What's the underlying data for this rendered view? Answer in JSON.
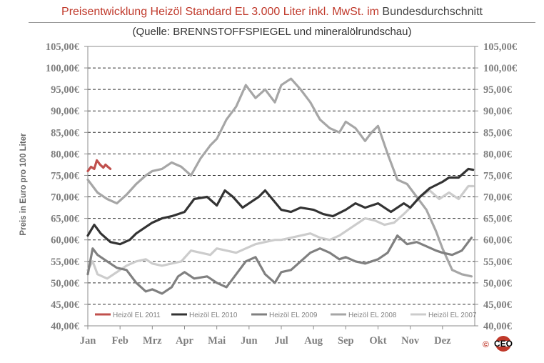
{
  "title": {
    "part1": "Preisentwicklung  Heizöl  Standard  EL  3.000  Liter  inkl.  MwSt.  im",
    "part2": "Bundesdurchschnitt"
  },
  "subtitle": "(Quelle:  BRENNSTOFFSPIEGEL  und  mineralölrundschau)",
  "logo": {
    "copyright": "©",
    "text": "CEO"
  },
  "chart_data": {
    "type": "line",
    "ylabel": "Preis in Euro pro 100 Liter",
    "ylim": [
      40,
      105
    ],
    "yticks": [
      "40,00€",
      "45,00€",
      "50,00€",
      "55,00€",
      "60,00€",
      "65,00€",
      "70,00€",
      "75,00€",
      "80,00€",
      "85,00€",
      "90,00€",
      "95,00€",
      "100,00€",
      "105,00€"
    ],
    "xlim": [
      1,
      13
    ],
    "categories": [
      "Jan",
      "Feb",
      "Mrz",
      "Apr",
      "Mai",
      "Jun",
      "Jul",
      "Aug",
      "Sep",
      "Okt",
      "Nov",
      "Dez"
    ],
    "grid": "horizontal dashed",
    "legend_position": "bottom",
    "series": [
      {
        "name": "Heizöl EL 2011",
        "color": "#c0504d",
        "x": [
          1.0,
          1.1,
          1.2,
          1.28,
          1.38,
          1.48,
          1.55,
          1.62,
          1.7
        ],
        "values": [
          76.0,
          77.0,
          76.5,
          78.5,
          77.5,
          76.8,
          77.5,
          77.0,
          76.5
        ]
      },
      {
        "name": "Heizöl EL 2010",
        "color": "#333333",
        "x": [
          1.0,
          1.2,
          1.4,
          1.7,
          2.0,
          2.3,
          2.5,
          2.8,
          3.0,
          3.3,
          3.6,
          4.0,
          4.3,
          4.7,
          5.0,
          5.25,
          5.5,
          5.8,
          6.0,
          6.3,
          6.5,
          7.0,
          7.3,
          7.6,
          8.0,
          8.3,
          8.6,
          9.0,
          9.3,
          9.6,
          10.0,
          10.4,
          10.8,
          11.0,
          11.3,
          11.6,
          12.0,
          12.2,
          12.5,
          12.8,
          12.95
        ],
        "values": [
          61.0,
          63.5,
          61.5,
          59.5,
          59.0,
          60.0,
          61.5,
          63.0,
          64.0,
          65.0,
          65.5,
          66.5,
          69.5,
          70.0,
          68.0,
          71.5,
          70.0,
          67.5,
          68.5,
          70.0,
          71.5,
          67.0,
          66.5,
          67.5,
          67.0,
          66.0,
          65.5,
          67.0,
          68.5,
          67.5,
          68.5,
          66.5,
          68.5,
          67.5,
          70.0,
          72.0,
          73.5,
          74.5,
          74.5,
          76.5,
          76.3
        ]
      },
      {
        "name": "Heizöl EL 2009",
        "color": "#808080",
        "x": [
          1.0,
          1.15,
          1.3,
          1.6,
          1.9,
          2.2,
          2.5,
          2.8,
          3.0,
          3.3,
          3.6,
          3.8,
          4.0,
          4.3,
          4.7,
          5.0,
          5.3,
          5.6,
          5.9,
          6.2,
          6.5,
          6.8,
          7.0,
          7.3,
          7.6,
          7.9,
          8.2,
          8.5,
          8.8,
          9.0,
          9.3,
          9.6,
          10.0,
          10.3,
          10.6,
          10.9,
          11.2,
          11.5,
          11.8,
          12.0,
          12.3,
          12.6,
          12.9
        ],
        "values": [
          52.0,
          58.0,
          56.5,
          55.0,
          53.5,
          53.0,
          50.0,
          48.0,
          48.5,
          47.5,
          49.0,
          51.5,
          52.5,
          51.0,
          51.5,
          50.0,
          49.0,
          52.0,
          55.0,
          56.0,
          52.0,
          50.0,
          52.5,
          53.0,
          55.0,
          57.0,
          58.0,
          57.0,
          55.5,
          56.0,
          55.0,
          54.5,
          55.5,
          57.0,
          61.0,
          59.0,
          59.5,
          58.5,
          57.5,
          57.0,
          56.5,
          57.5,
          60.5
        ]
      },
      {
        "name": "Heizöl EL 2008",
        "color": "#a6a6a6",
        "x": [
          1.0,
          1.15,
          1.3,
          1.6,
          1.9,
          2.2,
          2.5,
          2.8,
          3.0,
          3.3,
          3.6,
          3.9,
          4.2,
          4.5,
          4.8,
          5.0,
          5.3,
          5.6,
          5.9,
          6.2,
          6.5,
          6.8,
          7.0,
          7.3,
          7.6,
          7.9,
          8.2,
          8.5,
          8.8,
          9.0,
          9.3,
          9.6,
          9.8,
          10.0,
          10.3,
          10.6,
          10.9,
          11.2,
          11.5,
          11.8,
          12.0,
          12.3,
          12.6,
          12.9
        ],
        "values": [
          74.0,
          72.5,
          71.0,
          69.5,
          68.5,
          70.5,
          73.0,
          75.0,
          76.0,
          76.5,
          78.0,
          77.0,
          75.0,
          79.0,
          82.0,
          83.5,
          88.0,
          91.0,
          96.0,
          93.0,
          95.0,
          92.0,
          96.0,
          97.5,
          95.0,
          92.0,
          88.0,
          86.0,
          85.0,
          87.5,
          86.0,
          83.0,
          85.0,
          86.5,
          80.0,
          74.0,
          73.0,
          70.0,
          67.0,
          62.0,
          58.0,
          53.0,
          52.0,
          51.5
        ]
      },
      {
        "name": "Heizöl EL 2007",
        "color": "#cccccc",
        "x": [
          1.0,
          1.15,
          1.3,
          1.6,
          1.9,
          2.2,
          2.5,
          2.8,
          3.0,
          3.3,
          3.6,
          3.9,
          4.2,
          4.5,
          4.8,
          5.0,
          5.3,
          5.6,
          5.9,
          6.2,
          6.5,
          6.8,
          7.0,
          7.3,
          7.6,
          7.9,
          8.2,
          8.5,
          8.8,
          9.0,
          9.3,
          9.6,
          9.9,
          10.2,
          10.5,
          10.8,
          11.0,
          11.3,
          11.6,
          11.9,
          12.2,
          12.5,
          12.8,
          12.95
        ],
        "values": [
          53.0,
          55.0,
          52.0,
          51.0,
          52.5,
          54.0,
          55.0,
          55.5,
          54.5,
          54.0,
          54.5,
          55.0,
          57.5,
          57.0,
          56.5,
          58.0,
          57.5,
          57.0,
          58.0,
          59.0,
          59.5,
          60.0,
          60.0,
          60.5,
          61.0,
          61.5,
          60.5,
          60.0,
          61.0,
          62.0,
          63.5,
          65.0,
          64.5,
          63.5,
          64.0,
          66.0,
          67.5,
          70.0,
          71.5,
          69.5,
          71.0,
          69.5,
          72.5,
          72.5
        ]
      }
    ]
  }
}
